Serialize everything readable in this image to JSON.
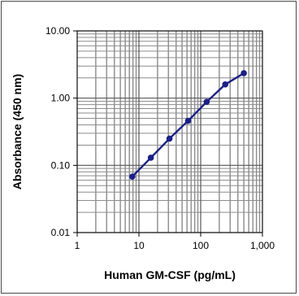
{
  "chart_data": {
    "type": "line",
    "title": "",
    "xlabel": "Human GM-CSF (pg/mL)",
    "ylabel": "Absorbance (450 nm)",
    "xscale": "log",
    "yscale": "log",
    "xlim": [
      1,
      1000
    ],
    "ylim": [
      0.01,
      10
    ],
    "x_ticks": [
      1,
      10,
      100,
      1000
    ],
    "x_tick_labels": [
      "1",
      "10",
      "100",
      "1,000"
    ],
    "y_ticks": [
      0.01,
      0.1,
      1,
      10
    ],
    "y_tick_labels": [
      "0.01",
      "0.10",
      "1.00",
      "10.00"
    ],
    "grid": true,
    "series": [
      {
        "x": [
          7.8,
          15.6,
          31.25,
          62.5,
          125,
          250,
          500
        ],
        "y": [
          0.068,
          0.13,
          0.25,
          0.46,
          0.88,
          1.6,
          2.35
        ]
      }
    ],
    "colors": {
      "series": "#1a1f8c",
      "grid": "#8c8c8c",
      "axis": "#000000"
    }
  }
}
